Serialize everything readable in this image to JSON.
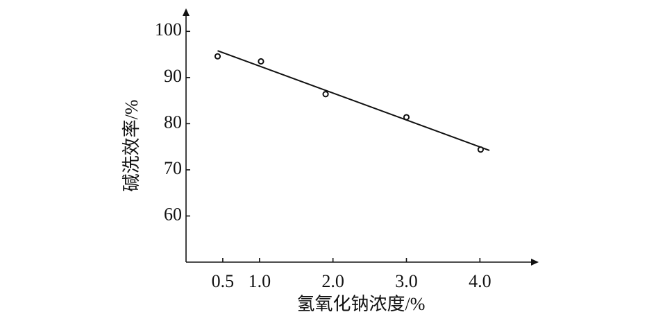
{
  "chart_data": {
    "type": "scatter",
    "x_label": "氢氧化钠浓度/%",
    "y_label": "碱洗效率/%",
    "x": [
      0.43,
      1.02,
      1.9,
      3.0,
      4.01
    ],
    "y": [
      94.6,
      93.5,
      86.4,
      81.4,
      74.4
    ],
    "fit_line": {
      "x": [
        0.43,
        4.13
      ],
      "y": [
        95.8,
        74.2
      ]
    },
    "color": "#111111",
    "xlim": [
      0,
      4.8
    ],
    "ylim": [
      50,
      105
    ],
    "xticks": [
      0.5,
      {
        "value": 1,
        "label": "1.0"
      },
      {
        "value": 2,
        "label": "2.0"
      },
      {
        "value": 3,
        "label": "3.0"
      },
      {
        "value": 4,
        "label": "4.0"
      }
    ],
    "yticks": [
      60,
      70,
      80,
      90,
      100
    ]
  }
}
